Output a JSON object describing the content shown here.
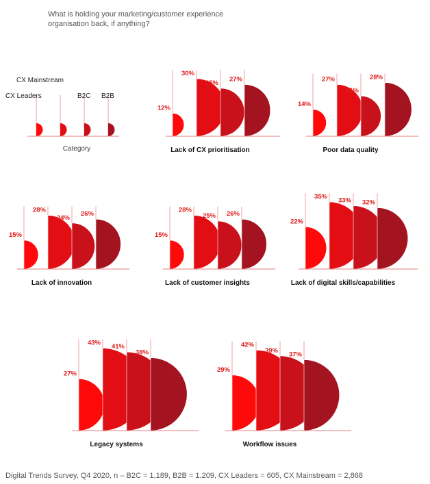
{
  "question": "What is holding your marketing/customer experience organisation back, if anything?",
  "footer": "Digital Trends Survey, Q4 2020, n – B2C = 1,189, B2B = 1,209, CX Leaders = 605, CX Mainstream = 2,868",
  "colors": {
    "cx_leaders": "#ff0a0a",
    "b2c": "#e30d14",
    "b2b": "#c9111c",
    "cx_mainstream": "#a31420"
  },
  "chart_data": {
    "type": "other",
    "legend": {
      "title": "Category",
      "series_order": [
        "CX Leaders",
        "B2C",
        "B2B",
        "CX Mainstream"
      ],
      "labels": [
        "CX Leaders",
        "CX Mainstream",
        "B2C",
        "B2B"
      ]
    },
    "panels": [
      {
        "category": "Lack of CX prioritisation",
        "values": [
          12,
          30,
          25,
          27
        ],
        "labels": [
          "12%",
          "30%",
          "25%",
          "27%"
        ]
      },
      {
        "category": "Poor data quality",
        "values": [
          14,
          27,
          21,
          28
        ],
        "labels": [
          "14%",
          "27%",
          "21%",
          "28%"
        ]
      },
      {
        "category": "Lack of innovation",
        "values": [
          15,
          28,
          24,
          26
        ],
        "labels": [
          "15%",
          "28%",
          "24%",
          "26%"
        ]
      },
      {
        "category": "Lack of customer insights",
        "values": [
          15,
          28,
          25,
          26
        ],
        "labels": [
          "15%",
          "28%",
          "25%",
          "26%"
        ]
      },
      {
        "category": "Lack of digital skills/capabilities",
        "values": [
          22,
          35,
          33,
          32
        ],
        "labels": [
          "22%",
          "35%",
          "33%",
          "32%"
        ]
      },
      {
        "category": "Legacy systems",
        "values": [
          27,
          43,
          41,
          38
        ],
        "labels": [
          "27%",
          "43%",
          "41%",
          "38%"
        ]
      },
      {
        "category": "Workflow issues",
        "values": [
          29,
          42,
          39,
          37
        ],
        "labels": [
          "29%",
          "42%",
          "39%",
          "37%"
        ]
      }
    ]
  }
}
